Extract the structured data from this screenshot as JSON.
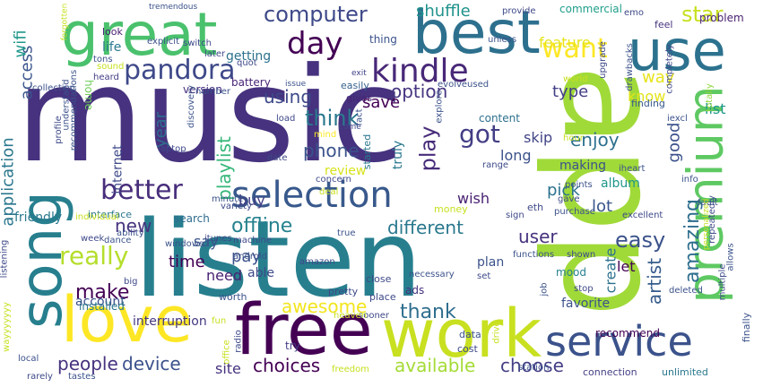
{
  "colors": {
    "background": "#ffffff",
    "palette": [
      "#440154",
      "#46327e",
      "#365c8d",
      "#277f8e",
      "#1fa187",
      "#4ac16d",
      "#a0da39",
      "#fde725"
    ]
  },
  "words": [
    {
      "text": "music",
      "weight": 100,
      "color": "#46327e"
    },
    {
      "text": "app",
      "weight": 96,
      "color": "#a0da39"
    },
    {
      "text": "listen",
      "weight": 82,
      "color": "#277f8e"
    },
    {
      "text": "free",
      "weight": 62,
      "color": "#440154"
    },
    {
      "text": "work",
      "weight": 60,
      "color": "#c8e020"
    },
    {
      "text": "great",
      "weight": 60,
      "color": "#4ac16d"
    },
    {
      "text": "best",
      "weight": 56,
      "color": "#2d708e"
    },
    {
      "text": "song",
      "weight": 52,
      "color": "#277f8e"
    },
    {
      "text": "love",
      "weight": 52,
      "color": "#fde725"
    },
    {
      "text": "use",
      "weight": 50,
      "color": "#2c728e"
    },
    {
      "text": "premium",
      "weight": 48,
      "color": "#5ec962"
    },
    {
      "text": "service",
      "weight": 40,
      "color": "#3b528b"
    },
    {
      "text": "selection",
      "weight": 32,
      "color": "#38598c"
    },
    {
      "text": "kindle",
      "weight": 30,
      "color": "#482878"
    },
    {
      "text": "day",
      "weight": 30,
      "color": "#440154"
    },
    {
      "text": "pandora",
      "weight": 28,
      "color": "#3e4989"
    },
    {
      "text": "better",
      "weight": 26,
      "color": "#472d7b"
    },
    {
      "text": "want",
      "weight": 26,
      "color": "#fde725"
    },
    {
      "text": "amazing",
      "weight": 24,
      "color": "#2e6e8e"
    },
    {
      "text": "got",
      "weight": 24,
      "color": "#433e85"
    },
    {
      "text": "really",
      "weight": 22,
      "color": "#b5de2b"
    },
    {
      "text": "computer",
      "weight": 20,
      "color": "#3e4989"
    },
    {
      "text": "make",
      "weight": 20,
      "color": "#440154"
    },
    {
      "text": "think",
      "weight": 20,
      "color": "#2a788e"
    },
    {
      "text": "play",
      "weight": 20,
      "color": "#472c7a"
    },
    {
      "text": "easy",
      "weight": 20,
      "color": "#3b528b"
    },
    {
      "text": "star",
      "weight": 20,
      "color": "#c8e020"
    },
    {
      "text": "playlist",
      "weight": 18,
      "color": "#35b779"
    },
    {
      "text": "artist",
      "weight": 18,
      "color": "#365c8d"
    },
    {
      "text": "thank",
      "weight": 18,
      "color": "#2e6e8e"
    },
    {
      "text": "people",
      "weight": 18,
      "color": "#46327e"
    },
    {
      "text": "device",
      "weight": 18,
      "color": "#3b528b"
    },
    {
      "text": "choices",
      "weight": 17,
      "color": "#440154"
    },
    {
      "text": "different",
      "weight": 17,
      "color": "#2a788e"
    },
    {
      "text": "offline",
      "weight": 17,
      "color": "#26828e"
    },
    {
      "text": "option",
      "weight": 17,
      "color": "#463480"
    },
    {
      "text": "using",
      "weight": 17,
      "color": "#3e4989"
    },
    {
      "text": "new",
      "weight": 17,
      "color": "#46327e"
    },
    {
      "text": "user",
      "weight": 17,
      "color": "#46327e"
    },
    {
      "text": "enjoy",
      "weight": 16,
      "color": "#2d708e"
    },
    {
      "text": "shuffle",
      "weight": 16,
      "color": "#20928c"
    },
    {
      "text": "awesome",
      "weight": 16,
      "color": "#f2e51d"
    },
    {
      "text": "available",
      "weight": 16,
      "color": "#a5db36"
    },
    {
      "text": "choose",
      "weight": 16,
      "color": "#433e85"
    },
    {
      "text": "application",
      "weight": 15,
      "color": "#2a778e"
    },
    {
      "text": "access",
      "weight": 15,
      "color": "#3a548c"
    },
    {
      "text": "wifi",
      "weight": 15,
      "color": "#1f988b"
    },
    {
      "text": "good",
      "weight": 15,
      "color": "#3b528b"
    },
    {
      "text": "way",
      "weight": 15,
      "color": "#e7e419"
    },
    {
      "text": "save",
      "weight": 15,
      "color": "#440154"
    },
    {
      "text": "year",
      "weight": 15,
      "color": "#2e6e8e"
    },
    {
      "text": "type",
      "weight": 15,
      "color": "#433e85"
    },
    {
      "text": "phone",
      "weight": 15,
      "color": "#3b528b"
    },
    {
      "text": "time",
      "weight": 15,
      "color": "#440154"
    },
    {
      "text": "pay",
      "weight": 15,
      "color": "#3b528b"
    },
    {
      "text": "lot",
      "weight": 15,
      "color": "#39568c"
    },
    {
      "text": "pick",
      "weight": 15,
      "color": "#2c728e"
    },
    {
      "text": "skip",
      "weight": 14,
      "color": "#414487"
    },
    {
      "text": "wish",
      "weight": 14,
      "color": "#482173"
    },
    {
      "text": "create",
      "weight": 14,
      "color": "#2c728e"
    },
    {
      "text": "long",
      "weight": 14,
      "color": "#3b528b"
    },
    {
      "text": "know",
      "weight": 14,
      "color": "#e2e418"
    },
    {
      "text": "list",
      "weight": 14,
      "color": "#1f988b"
    },
    {
      "text": "feature",
      "weight": 14,
      "color": "#e5e419"
    },
    {
      "text": "internet",
      "weight": 13,
      "color": "#3e4989"
    },
    {
      "text": "site",
      "weight": 13,
      "color": "#46327e"
    },
    {
      "text": "album",
      "weight": 13,
      "color": "#1f968b"
    },
    {
      "text": "need",
      "weight": 13,
      "color": "#482173"
    },
    {
      "text": "let",
      "weight": 13,
      "color": "#440154"
    },
    {
      "text": "getting",
      "weight": 12,
      "color": "#2c728e"
    },
    {
      "text": "friendly",
      "weight": 12,
      "color": "#2a788e"
    },
    {
      "text": "review",
      "weight": 12,
      "color": "#d8e219"
    },
    {
      "text": "account",
      "weight": 12,
      "color": "#3b528b"
    },
    {
      "text": "interruption",
      "weight": 12,
      "color": "#453781"
    },
    {
      "text": "buy",
      "weight": 12,
      "color": "#433e85"
    },
    {
      "text": "say",
      "weight": 12,
      "color": "#3a548c"
    },
    {
      "text": "able",
      "weight": 12,
      "color": "#3e4989"
    },
    {
      "text": "plan",
      "weight": 12,
      "color": "#3b528b"
    },
    {
      "text": "making",
      "weight": 12,
      "color": "#3b528b"
    },
    {
      "text": "life",
      "weight": 11,
      "color": "#2a788e"
    },
    {
      "text": "version",
      "weight": 11,
      "color": "#46307e"
    },
    {
      "text": "battery",
      "weight": 11,
      "color": "#482576"
    },
    {
      "text": "truly",
      "weight": 11,
      "color": "#2a788e"
    },
    {
      "text": "problem",
      "weight": 11,
      "color": "#481f70"
    },
    {
      "text": "content",
      "weight": 11,
      "color": "#2d708e"
    },
    {
      "text": "search",
      "weight": 11,
      "color": "#2f6b8e"
    },
    {
      "text": "installed",
      "weight": 11,
      "color": "#2a788e"
    },
    {
      "text": "thing",
      "weight": 11,
      "color": "#3b528b"
    },
    {
      "text": "favorite",
      "weight": 11,
      "color": "#3b528b"
    },
    {
      "text": "commercial",
      "weight": 10,
      "color": "#1f9e89"
    },
    {
      "text": "emo",
      "weight": 10,
      "color": "#3e4989"
    },
    {
      "text": "feel",
      "weight": 10,
      "color": "#46327e"
    },
    {
      "text": "gives",
      "weight": 10,
      "color": "#482475"
    },
    {
      "text": "look",
      "weight": 10,
      "color": "#481b6d"
    },
    {
      "text": "finding",
      "weight": 10,
      "color": "#38598c"
    },
    {
      "text": "interface",
      "weight": 10,
      "color": "#2a788e"
    },
    {
      "text": "started",
      "weight": 10,
      "color": "#2a788e"
    },
    {
      "text": "easily",
      "weight": 10,
      "color": "#35608d"
    },
    {
      "text": "eth",
      "weight": 10,
      "color": "#3e4989"
    },
    {
      "text": "try",
      "weight": 10,
      "color": "#433e85"
    },
    {
      "text": "recommend",
      "weight": 10,
      "color": "#440154"
    },
    {
      "text": "home",
      "weight": 10,
      "color": "#6ece58"
    },
    {
      "text": "ads",
      "weight": 10,
      "color": "#46327e"
    },
    {
      "text": "mood",
      "weight": 10,
      "color": "#27808e"
    },
    {
      "text": "money",
      "weight": 10,
      "color": "#c8e020"
    },
    {
      "text": "worth",
      "weight": 10,
      "color": "#3b528b"
    },
    {
      "text": "close",
      "weight": 10,
      "color": "#3e4989"
    },
    {
      "text": "place",
      "weight": 10,
      "color": "#3e4989"
    },
    {
      "text": "pretty",
      "weight": 10,
      "color": "#3e4989"
    },
    {
      "text": "cost",
      "weight": 10,
      "color": "#3e4989"
    },
    {
      "text": "data",
      "weight": 10,
      "color": "#3b528b"
    },
    {
      "text": "connection",
      "weight": 10,
      "color": "#433e85"
    },
    {
      "text": "unlimited",
      "weight": 10,
      "color": "#2a788e"
    },
    {
      "text": "finally",
      "weight": 10,
      "color": "#3b528b"
    },
    {
      "text": "explicit",
      "weight": 9,
      "color": "#3b528b"
    },
    {
      "text": "switch",
      "weight": 9,
      "color": "#3e4989"
    },
    {
      "text": "later",
      "weight": 9,
      "color": "#3e4989"
    },
    {
      "text": "quot",
      "weight": 9,
      "color": "#3e4989"
    },
    {
      "text": "tons",
      "weight": 9,
      "color": "#3b528b"
    },
    {
      "text": "heard",
      "weight": 9,
      "color": "#433e85"
    },
    {
      "text": "collection",
      "weight": 9,
      "color": "#3b528b"
    },
    {
      "text": "issue",
      "weight": 9,
      "color": "#3b528b"
    },
    {
      "text": "exit",
      "weight": 9,
      "color": "#414487"
    },
    {
      "text": "provide",
      "weight": 9,
      "color": "#3e4989"
    },
    {
      "text": "unless",
      "weight": 9,
      "color": "#3b528b"
    },
    {
      "text": "upgrade",
      "weight": 9,
      "color": "#3e4989"
    },
    {
      "text": "evolveused",
      "weight": 9,
      "color": "#3b528b"
    },
    {
      "text": "iexcl",
      "weight": 9,
      "color": "#3b528b"
    },
    {
      "text": "totally",
      "weight": 9,
      "color": "#93d741"
    },
    {
      "text": "hour",
      "weight": 9,
      "color": "#c8e020"
    },
    {
      "text": "range",
      "weight": 9,
      "color": "#3e4989"
    },
    {
      "text": "iheart",
      "weight": 9,
      "color": "#3b528b"
    },
    {
      "text": "info",
      "weight": 9,
      "color": "#3b528b"
    },
    {
      "text": "date",
      "weight": 9,
      "color": "#3e4989"
    },
    {
      "text": "laptop",
      "weight": 9,
      "color": "#3e4989"
    },
    {
      "text": "mind",
      "weight": 9,
      "color": "#fde725"
    },
    {
      "text": "concern",
      "weight": 9,
      "color": "#3e4989"
    },
    {
      "text": "deal",
      "weight": 9,
      "color": "#c8e020"
    },
    {
      "text": "discovery",
      "weight": 9,
      "color": "#3b528b"
    },
    {
      "text": "load",
      "weight": 9,
      "color": "#3e4989"
    },
    {
      "text": "fact",
      "weight": 9,
      "color": "#3b528b"
    },
    {
      "text": "explore",
      "weight": 9,
      "color": "#3b528b"
    },
    {
      "text": "variety",
      "weight": 9,
      "color": "#3e4989"
    },
    {
      "text": "minute",
      "weight": 9,
      "color": "#3b528b"
    },
    {
      "text": "machine",
      "weight": 9,
      "color": "#3e4989"
    },
    {
      "text": "windows",
      "weight": 9,
      "color": "#3b528b"
    },
    {
      "text": "itunes",
      "weight": 9,
      "color": "#3e4989"
    },
    {
      "text": "android",
      "weight": 9,
      "color": "#3b528b"
    },
    {
      "text": "amazon",
      "weight": 9,
      "color": "#3e4989"
    },
    {
      "text": "ability",
      "weight": 9,
      "color": "#3b528b"
    },
    {
      "text": "individual",
      "weight": 9,
      "color": "#c8e020"
    },
    {
      "text": "week",
      "weight": 9,
      "color": "#3e4989"
    },
    {
      "text": "dance",
      "weight": 9,
      "color": "#3b528b"
    },
    {
      "text": "big",
      "weight": 9,
      "color": "#3e4989"
    },
    {
      "text": "true",
      "weight": 9,
      "color": "#3b528b"
    },
    {
      "text": "sign",
      "weight": 9,
      "color": "#3e4989"
    },
    {
      "text": "purchase",
      "weight": 9,
      "color": "#3b528b"
    },
    {
      "text": "gave",
      "weight": 9,
      "color": "#3e4989"
    },
    {
      "text": "points",
      "weight": 9,
      "color": "#3b528b"
    },
    {
      "text": "excellent",
      "weight": 9,
      "color": "#3e4989"
    },
    {
      "text": "functions",
      "weight": 9,
      "color": "#3b528b"
    },
    {
      "text": "shown",
      "weight": 9,
      "color": "#3e4989"
    },
    {
      "text": "necessary",
      "weight": 9,
      "color": "#3b528b"
    },
    {
      "text": "set",
      "weight": 9,
      "color": "#3e4989"
    },
    {
      "text": "job",
      "weight": 9,
      "color": "#3b528b"
    },
    {
      "text": "stop",
      "weight": 9,
      "color": "#3e4989"
    },
    {
      "text": "deleted",
      "weight": 9,
      "color": "#3b528b"
    },
    {
      "text": "multiple",
      "weight": 9,
      "color": "#3e4989"
    },
    {
      "text": "allows",
      "weight": 9,
      "color": "#3b528b"
    },
    {
      "text": "repeatedly",
      "weight": 9,
      "color": "#3e4989"
    },
    {
      "text": "fault",
      "weight": 9,
      "color": "#3b528b"
    },
    {
      "text": "personalized",
      "weight": 9,
      "color": "#c8e020"
    },
    {
      "text": "sooner",
      "weight": 9,
      "color": "#3e4989"
    },
    {
      "text": "heaven",
      "weight": 9,
      "color": "#c8e020"
    },
    {
      "text": "drive",
      "weight": 9,
      "color": "#c8e020"
    },
    {
      "text": "station",
      "weight": 9,
      "color": "#3b528b"
    },
    {
      "text": "freedom",
      "weight": 9,
      "color": "#c8e020"
    },
    {
      "text": "fun",
      "weight": 9,
      "color": "#c8e020"
    },
    {
      "text": "radio",
      "weight": 9,
      "color": "#3e4989"
    },
    {
      "text": "office",
      "weight": 9,
      "color": "#c8e020"
    },
    {
      "text": "local",
      "weight": 9,
      "color": "#3b528b"
    },
    {
      "text": "rarely",
      "weight": 9,
      "color": "#3e4989"
    },
    {
      "text": "tastes",
      "weight": 9,
      "color": "#3b528b"
    },
    {
      "text": "wayyyyyyy",
      "weight": 9,
      "color": "#c8e020"
    },
    {
      "text": "listening",
      "weight": 9,
      "color": "#3e4989"
    },
    {
      "text": "recommendations",
      "weight": 9,
      "color": "#3b528b"
    },
    {
      "text": "profile",
      "weight": 9,
      "color": "#3e4989"
    },
    {
      "text": "understand",
      "weight": 9,
      "color": "#3b528b"
    },
    {
      "text": "forgotten",
      "weight": 9,
      "color": "#c8e020"
    },
    {
      "text": "sound",
      "weight": 9,
      "color": "#c8e020"
    },
    {
      "text": "tremendous",
      "weight": 9,
      "color": "#3b528b"
    },
    {
      "text": "world",
      "weight": 9,
      "color": "#c8e020"
    },
    {
      "text": "completely",
      "weight": 9,
      "color": "#3e4989"
    },
    {
      "text": "drawbacks",
      "weight": 9,
      "color": "#3b528b"
    },
    {
      "text": "come",
      "weight": 9,
      "color": "#3e4989"
    },
    {
      "text": "number",
      "weight": 9,
      "color": "#3b528b"
    }
  ]
}
